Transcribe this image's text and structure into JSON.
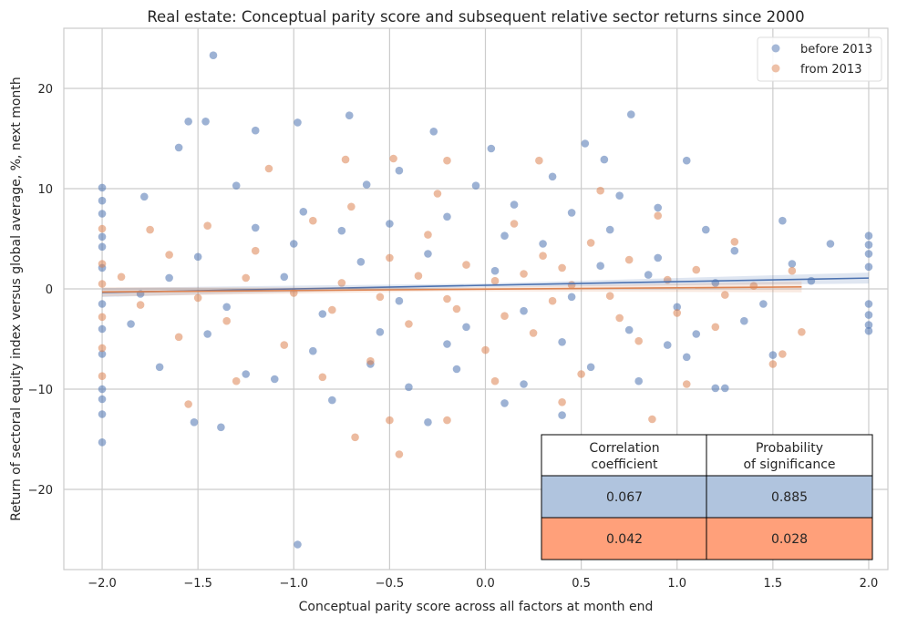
{
  "chart_data": {
    "type": "scatter",
    "title": "Real estate: Conceptual parity score and subsequent relative sector returns since 2000",
    "xlabel": "Conceptual parity score across all factors at month end",
    "ylabel": "Return of sectoral equity index versus global average, %, next month",
    "xlim": [
      -2.2,
      2.1
    ],
    "ylim": [
      -28,
      26
    ],
    "xticks": [
      -2.0,
      -1.5,
      -1.0,
      -0.5,
      0.0,
      0.5,
      1.0,
      1.5,
      2.0
    ],
    "xtick_labels": [
      "−2.0",
      "−1.5",
      "−1.0",
      "−0.5",
      "0.0",
      "0.5",
      "1.0",
      "1.5",
      "2.0"
    ],
    "yticks": [
      -20,
      -10,
      0,
      10,
      20
    ],
    "ytick_labels": [
      "−20",
      "−10",
      "0",
      "10",
      "20"
    ],
    "grid": true,
    "legend": "top-right",
    "series": [
      {
        "name": "before 2013",
        "color": "#4c72b0",
        "regression": {
          "x": [
            -2.0,
            2.0
          ],
          "y": [
            -0.36,
            1.08
          ]
        },
        "points": [
          [
            -1.42,
            23.3
          ],
          [
            -1.55,
            16.7
          ],
          [
            -1.46,
            16.7
          ],
          [
            -0.98,
            16.6
          ],
          [
            -0.71,
            17.3
          ],
          [
            0.76,
            17.4
          ],
          [
            -1.6,
            14.1
          ],
          [
            -0.27,
            15.7
          ],
          [
            0.52,
            14.5
          ],
          [
            0.03,
            14.0
          ],
          [
            1.05,
            12.8
          ],
          [
            -1.2,
            15.8
          ],
          [
            -2,
            10.1
          ],
          [
            -2,
            8.8
          ],
          [
            -2,
            7.5
          ],
          [
            -2,
            5.2
          ],
          [
            -2,
            4.2
          ],
          [
            -2,
            2.1
          ],
          [
            -2,
            -1.5
          ],
          [
            -2,
            -4
          ],
          [
            -2,
            -6.5
          ],
          [
            -2,
            -10
          ],
          [
            -2,
            -11
          ],
          [
            -2,
            -12.5
          ],
          [
            -2,
            -15.3
          ],
          [
            2,
            5.3
          ],
          [
            2,
            4.4
          ],
          [
            2,
            3.5
          ],
          [
            2,
            2.2
          ],
          [
            2,
            -1.5
          ],
          [
            2,
            -2.6
          ],
          [
            2,
            -3.6
          ],
          [
            2,
            -4.2
          ],
          [
            -0.98,
            -25.5
          ],
          [
            -1.38,
            -13.8
          ],
          [
            -1.52,
            -13.3
          ],
          [
            -0.3,
            -13.3
          ],
          [
            0.1,
            -11.4
          ],
          [
            0.4,
            -12.6
          ],
          [
            1.2,
            -9.9
          ],
          [
            1.25,
            -9.9
          ],
          [
            1.5,
            -6.6
          ],
          [
            1.8,
            4.5
          ],
          [
            1.55,
            6.8
          ],
          [
            -1.78,
            9.2
          ],
          [
            -1.3,
            10.3
          ],
          [
            -0.62,
            10.4
          ],
          [
            -0.05,
            10.3
          ],
          [
            0.35,
            11.2
          ],
          [
            0.62,
            12.9
          ],
          [
            -0.45,
            11.8
          ],
          [
            -1.85,
            -3.5
          ],
          [
            -1.7,
            -7.8
          ],
          [
            -1.45,
            -4.5
          ],
          [
            -1.25,
            -8.5
          ],
          [
            -1.1,
            -9
          ],
          [
            -0.9,
            -6.2
          ],
          [
            -0.8,
            -11.1
          ],
          [
            -0.6,
            -7.5
          ],
          [
            -0.4,
            -9.8
          ],
          [
            -0.15,
            -8
          ],
          [
            0.2,
            -9.5
          ],
          [
            0.55,
            -7.8
          ],
          [
            0.8,
            -9.2
          ],
          [
            0.95,
            -5.6
          ],
          [
            1.1,
            -4.5
          ],
          [
            1.35,
            -3.2
          ],
          [
            1.45,
            -1.5
          ],
          [
            1.6,
            2.5
          ],
          [
            1.7,
            0.8
          ],
          [
            1.3,
            3.8
          ],
          [
            1.15,
            5.9
          ],
          [
            0.9,
            8.1
          ],
          [
            0.7,
            9.3
          ],
          [
            0.45,
            7.6
          ],
          [
            0.15,
            8.4
          ],
          [
            -0.2,
            7.2
          ],
          [
            -0.5,
            6.5
          ],
          [
            -0.75,
            5.8
          ],
          [
            -1.0,
            4.5
          ],
          [
            -1.2,
            6.1
          ],
          [
            -1.5,
            3.2
          ],
          [
            -1.65,
            1.1
          ],
          [
            -1.8,
            -0.5
          ],
          [
            -1.35,
            -1.8
          ],
          [
            -1.05,
            1.2
          ],
          [
            -0.85,
            -2.5
          ],
          [
            -0.65,
            2.7
          ],
          [
            -0.45,
            -1.2
          ],
          [
            -0.3,
            3.5
          ],
          [
            -0.1,
            -3.8
          ],
          [
            0.05,
            1.8
          ],
          [
            0.2,
            -2.2
          ],
          [
            0.3,
            4.5
          ],
          [
            0.45,
            -0.8
          ],
          [
            0.6,
            2.3
          ],
          [
            0.75,
            -4.1
          ],
          [
            0.85,
            1.4
          ],
          [
            1.0,
            -1.8
          ],
          [
            1.2,
            0.6
          ],
          [
            0.1,
            5.3
          ],
          [
            0.4,
            -5.3
          ],
          [
            -0.2,
            -5.5
          ],
          [
            0.65,
            5.9
          ],
          [
            -0.55,
            -4.3
          ],
          [
            0.9,
            3.1
          ],
          [
            1.05,
            -6.8
          ],
          [
            -0.95,
            7.7
          ]
        ]
      },
      {
        "name": "from 2013",
        "color": "#dd8452",
        "regression": {
          "x": [
            -2.0,
            1.65
          ],
          "y": [
            -0.3,
            0.2
          ]
        },
        "points": [
          [
            -1.55,
            -11.5
          ],
          [
            -1.3,
            -9.2
          ],
          [
            -0.45,
            -16.5
          ],
          [
            -0.68,
            -14.8
          ],
          [
            -0.5,
            -13.1
          ],
          [
            -0.2,
            -13.1
          ],
          [
            0.87,
            -13.0
          ],
          [
            0.4,
            -11.3
          ],
          [
            1.65,
            -4.3
          ],
          [
            1.6,
            1.8
          ],
          [
            1.55,
            -6.5
          ],
          [
            -1.13,
            12.0
          ],
          [
            -0.48,
            13.0
          ],
          [
            -0.2,
            12.8
          ],
          [
            0.28,
            12.8
          ],
          [
            -0.73,
            12.9
          ],
          [
            -2,
            6.0
          ],
          [
            -2,
            2.5
          ],
          [
            -2,
            0.5
          ],
          [
            -2,
            -2.8
          ],
          [
            -2,
            -5.9
          ],
          [
            -2,
            -8.7
          ],
          [
            0.6,
            9.8
          ],
          [
            -1.75,
            5.9
          ],
          [
            -1.6,
            -4.8
          ],
          [
            -1.45,
            6.3
          ],
          [
            -1.35,
            -3.2
          ],
          [
            -1.2,
            3.8
          ],
          [
            -1.05,
            -5.6
          ],
          [
            -0.9,
            6.8
          ],
          [
            -0.8,
            -2.1
          ],
          [
            -0.7,
            8.2
          ],
          [
            -0.6,
            -7.2
          ],
          [
            -0.5,
            3.1
          ],
          [
            -0.4,
            -3.5
          ],
          [
            -0.3,
            5.4
          ],
          [
            -0.2,
            -1.0
          ],
          [
            -0.1,
            2.4
          ],
          [
            0.0,
            -6.1
          ],
          [
            0.05,
            0.8
          ],
          [
            0.1,
            -2.7
          ],
          [
            0.15,
            6.5
          ],
          [
            0.2,
            1.5
          ],
          [
            0.25,
            -4.4
          ],
          [
            0.3,
            3.3
          ],
          [
            0.35,
            -1.2
          ],
          [
            0.45,
            0.4
          ],
          [
            0.5,
            -8.5
          ],
          [
            0.55,
            4.6
          ],
          [
            0.65,
            -0.7
          ],
          [
            0.75,
            2.9
          ],
          [
            0.8,
            -5.2
          ],
          [
            0.9,
            7.3
          ],
          [
            1.0,
            -2.4
          ],
          [
            1.1,
            1.9
          ],
          [
            1.2,
            -3.8
          ],
          [
            1.3,
            4.7
          ],
          [
            1.4,
            0.3
          ],
          [
            1.5,
            -7.5
          ],
          [
            -1.9,
            1.2
          ],
          [
            -1.8,
            -1.6
          ],
          [
            -1.65,
            3.4
          ],
          [
            -1.5,
            -0.9
          ],
          [
            -1.25,
            1.1
          ],
          [
            -1.0,
            -0.4
          ],
          [
            -0.75,
            0.6
          ],
          [
            -0.55,
            -0.8
          ],
          [
            -0.35,
            1.3
          ],
          [
            -0.15,
            -2.0
          ],
          [
            0.4,
            2.1
          ],
          [
            0.7,
            -2.9
          ],
          [
            0.95,
            0.9
          ],
          [
            1.25,
            -0.6
          ],
          [
            -0.25,
            9.5
          ],
          [
            0.05,
            -9.2
          ],
          [
            -0.85,
            -8.8
          ],
          [
            1.05,
            -9.5
          ]
        ]
      }
    ]
  },
  "table": {
    "headers": [
      "Correlation\ncoefficient",
      "Probability\nof significance"
    ],
    "header_lines": [
      [
        "Correlation",
        "coefficient"
      ],
      [
        "Probability",
        "of significance"
      ]
    ],
    "rows": [
      {
        "values": [
          "0.067",
          "0.885"
        ],
        "color": "#b0c4de"
      },
      {
        "values": [
          "0.042",
          "0.028"
        ],
        "color": "#ffa07a"
      }
    ]
  }
}
